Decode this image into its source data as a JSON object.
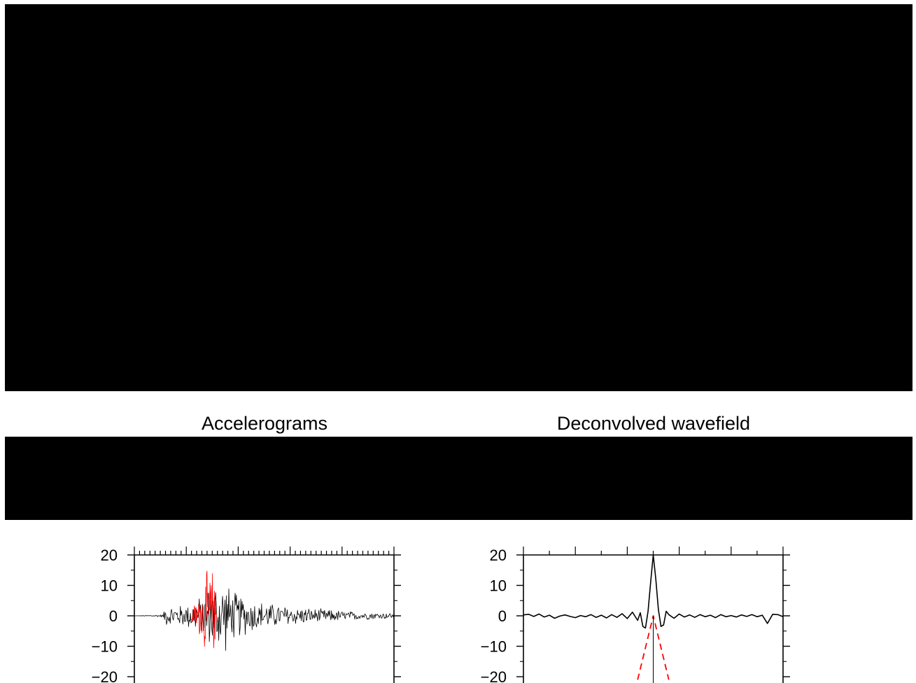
{
  "panels": {
    "left_title": "Accelerograms",
    "right_title": "Deconvolved wavefield"
  },
  "colors": {
    "band": "#000000",
    "trace": "#000000",
    "highlight": "#ff0000"
  },
  "chart_data": [
    {
      "type": "line",
      "title": "Accelerograms",
      "xlabel": "",
      "ylabel": "",
      "ylim": [
        -20,
        20
      ],
      "yticks": [
        "20",
        "10",
        "0",
        "−10",
        "−20"
      ],
      "ytick_values": [
        20,
        10,
        0,
        -10,
        -20
      ],
      "grid": false,
      "series": [
        {
          "color": "#000000",
          "envelope": {
            "x": [
              0,
              0.05,
              0.11,
              0.12,
              0.2,
              0.22,
              0.26,
              0.3,
              0.34,
              0.38,
              0.45,
              0.55,
              0.65,
              0.75,
              0.85,
              1.0
            ],
            "amplitude": [
              0,
              0.2,
              0.5,
              3.5,
              4,
              5.5,
              7,
              12,
              14,
              9,
              6,
              4,
              3,
              2.2,
              1.5,
              1
            ]
          }
        },
        {
          "color": "#ff0000",
          "envelope": {
            "x": [
              0.22,
              0.24,
              0.26,
              0.28,
              0.29,
              0.3,
              0.31,
              0.32
            ],
            "amplitude": [
              3,
              5,
              9,
              16,
              20,
              17,
              10,
              4
            ]
          }
        }
      ]
    },
    {
      "type": "line",
      "title": "Deconvolved wavefield",
      "xlabel": "",
      "ylabel": "",
      "ylim": [
        -20,
        20
      ],
      "yticks": [
        "20",
        "10",
        "0",
        "−10",
        "−20"
      ],
      "ytick_values": [
        20,
        10,
        0,
        -10,
        -20
      ],
      "grid": false,
      "series": [
        {
          "style": "solid",
          "color": "#000000",
          "x": [
            0,
            0.02,
            0.04,
            0.06,
            0.08,
            0.1,
            0.12,
            0.14,
            0.16,
            0.18,
            0.2,
            0.22,
            0.24,
            0.26,
            0.28,
            0.3,
            0.32,
            0.34,
            0.36,
            0.38,
            0.4,
            0.42,
            0.44,
            0.45,
            0.46,
            0.47,
            0.48,
            0.49,
            0.5,
            0.51,
            0.52,
            0.53,
            0.54,
            0.55,
            0.56,
            0.58,
            0.6,
            0.62,
            0.64,
            0.66,
            0.68,
            0.7,
            0.72,
            0.74,
            0.76,
            0.78,
            0.8,
            0.82,
            0.84,
            0.86,
            0.88,
            0.9,
            0.92,
            0.94,
            0.96,
            0.98,
            1.0
          ],
          "y": [
            0.3,
            0.5,
            -0.2,
            0.6,
            -0.4,
            0.2,
            -0.8,
            -0.1,
            0.3,
            -0.2,
            -0.6,
            0.1,
            -0.3,
            0.4,
            -0.5,
            0.2,
            -0.7,
            0.4,
            -0.5,
            0.7,
            -0.9,
            1.2,
            -1.5,
            1.0,
            -3.5,
            -4.0,
            1.5,
            11,
            20,
            12,
            2,
            -3.5,
            -3.0,
            1.5,
            0.4,
            -0.8,
            0.6,
            -0.4,
            0.3,
            -0.5,
            0.4,
            -0.3,
            0.2,
            -0.6,
            0.4,
            -0.3,
            0.1,
            -0.4,
            0.3,
            -0.2,
            0.4,
            -0.3,
            0.2,
            -2.5,
            0.5,
            0.4,
            -0.3
          ]
        },
        {
          "style": "dashed",
          "color": "#ff0000",
          "x": [
            0.44,
            0.5,
            0.56
          ],
          "y": [
            -21,
            0,
            -21
          ]
        }
      ]
    }
  ]
}
